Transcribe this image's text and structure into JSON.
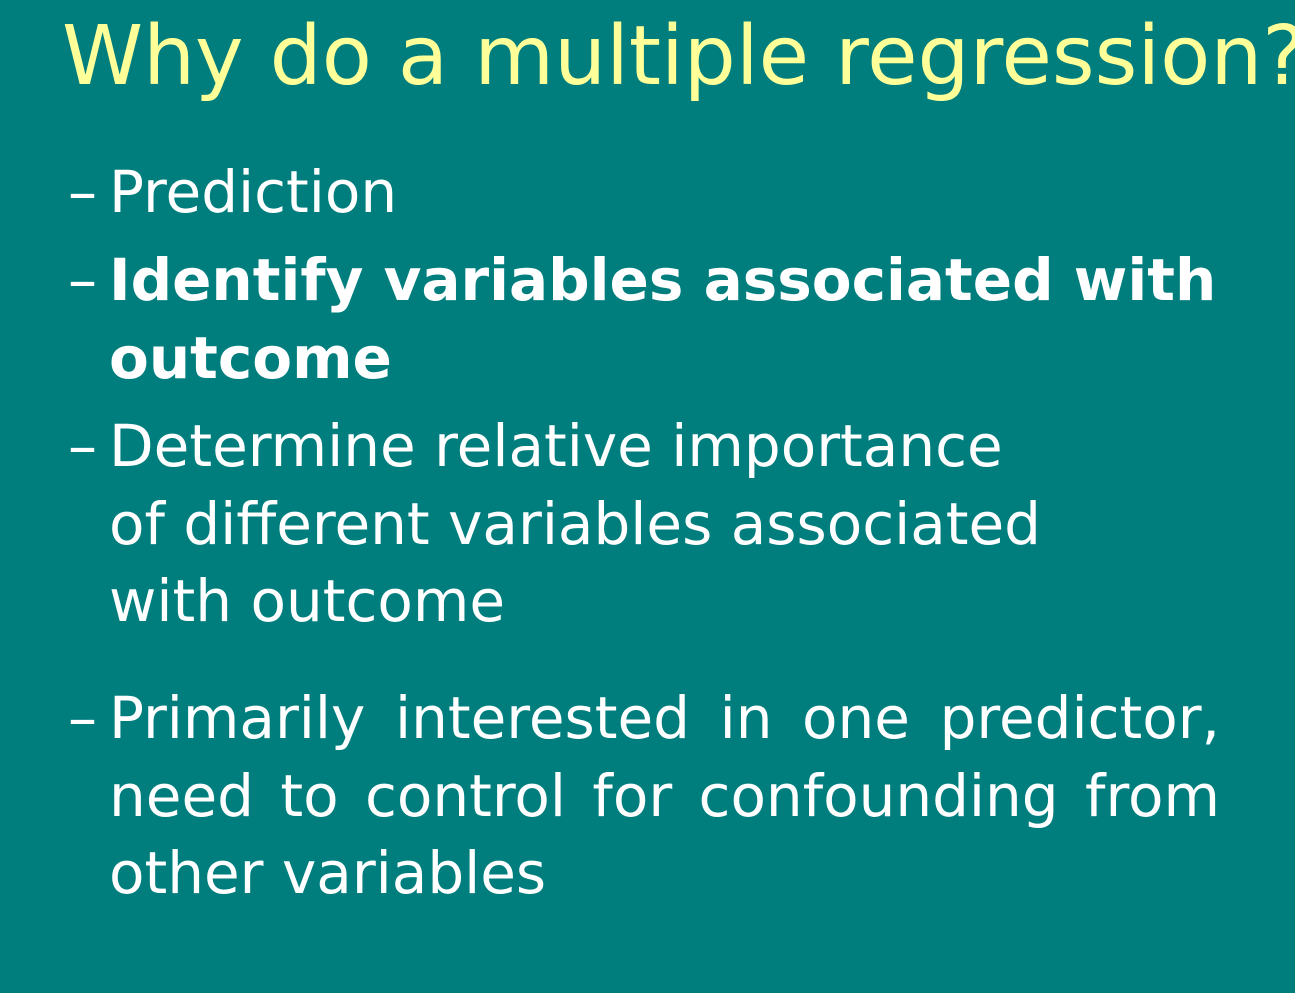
{
  "slide": {
    "title": "Why do a multiple regression?",
    "bullet_marker": "–",
    "bullets": [
      {
        "text": "Prediction"
      },
      {
        "text": "Identify variables associated with outcome"
      },
      {
        "text": "Determine relative importance of different variables associated with outcome"
      },
      {
        "text": "Primarily interested in one predictor, need to control for confounding from other variables"
      }
    ],
    "colors": {
      "background": "#007e7e",
      "title": "#ffff99",
      "body_text": "#ffffff"
    }
  }
}
